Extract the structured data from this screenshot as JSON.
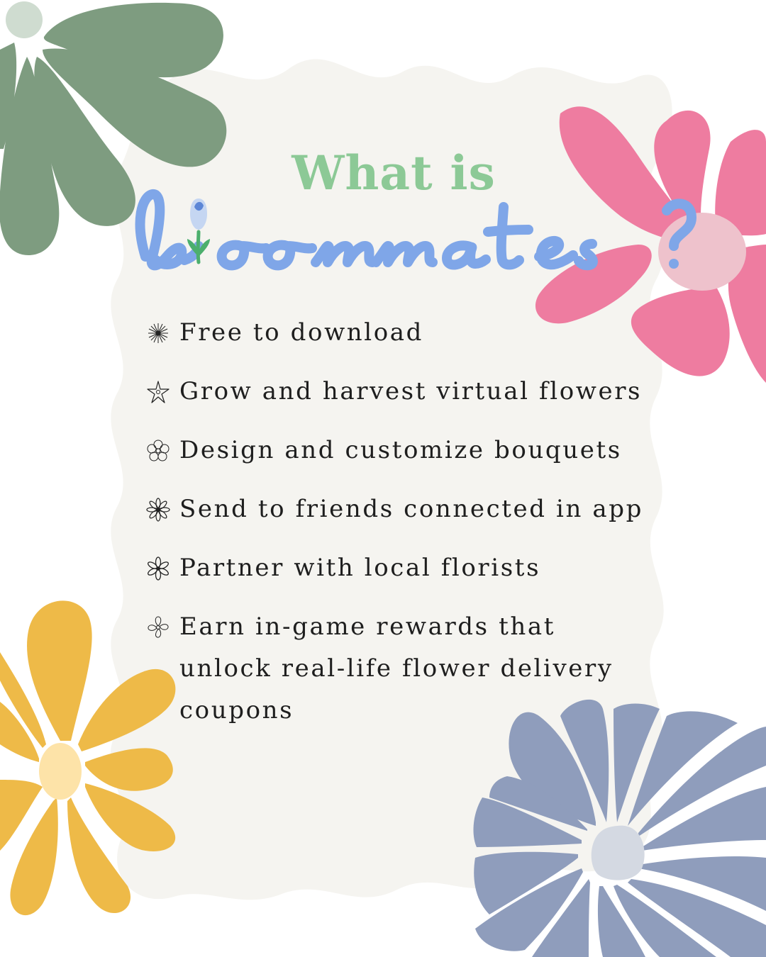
{
  "heading": {
    "prefix": "What is",
    "brand": "bioommates",
    "suffix": "?"
  },
  "features": [
    {
      "text": "Free to download",
      "icon": "daisy-icon"
    },
    {
      "text": "Grow and harvest virtual flowers",
      "icon": "star-flower-icon"
    },
    {
      "text": "Design and customize bouquets",
      "icon": "blossom-icon"
    },
    {
      "text": "Send to friends connected in app",
      "icon": "sunburst-flower-icon"
    },
    {
      "text": "Partner with local florists",
      "icon": "asterisk-flower-icon"
    },
    {
      "text": "Earn in-game rewards that unlock real-life flower delivery coupons",
      "icon": "petal-flower-icon"
    }
  ],
  "colors": {
    "cream": "#f5f4f0",
    "heading_green": "#8cc996",
    "brand_blue": "#7fa6e8",
    "green_flower": "#7e9c80",
    "pink_flower": "#ee7ca0",
    "yellow_flower": "#eeba48",
    "blue_flower": "#8f9dbc"
  }
}
